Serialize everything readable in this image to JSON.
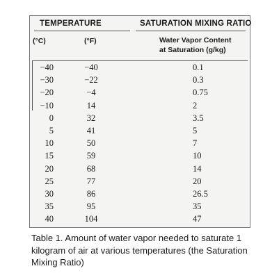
{
  "table": {
    "group_headers": {
      "temperature": "TEMPERATURE",
      "saturation": "SATURATION MIXING RATIO"
    },
    "columns": {
      "celsius": "(°C)",
      "fahrenheit": "(°F)",
      "ratio_line1": "Water Vapor Content",
      "ratio_line2": "at Saturation (g/kg)"
    },
    "rows": [
      {
        "c": "−40",
        "f": "−40",
        "r": "0.1"
      },
      {
        "c": "−30",
        "f": "−22",
        "r": "0.3"
      },
      {
        "c": "−20",
        "f": "−4",
        "r": "0.75"
      },
      {
        "c": "−10",
        "f": "14",
        "r": "2"
      },
      {
        "c": "0",
        "f": "32",
        "r": "3.5"
      },
      {
        "c": "5",
        "f": "41",
        "r": "5"
      },
      {
        "c": "10",
        "f": "50",
        "r": "7"
      },
      {
        "c": "15",
        "f": "59",
        "r": "10"
      },
      {
        "c": "20",
        "f": "68",
        "r": "14"
      },
      {
        "c": "25",
        "f": "77",
        "r": "20"
      },
      {
        "c": "30",
        "f": "86",
        "r": "26.5"
      },
      {
        "c": "35",
        "f": "95",
        "r": "35"
      },
      {
        "c": "40",
        "f": "104",
        "r": "47"
      }
    ]
  },
  "caption": "Table 1. Amount of water vapor needed to saturate 1 kilogram of air at various temperatures (the Saturation Mixing Ratio)"
}
